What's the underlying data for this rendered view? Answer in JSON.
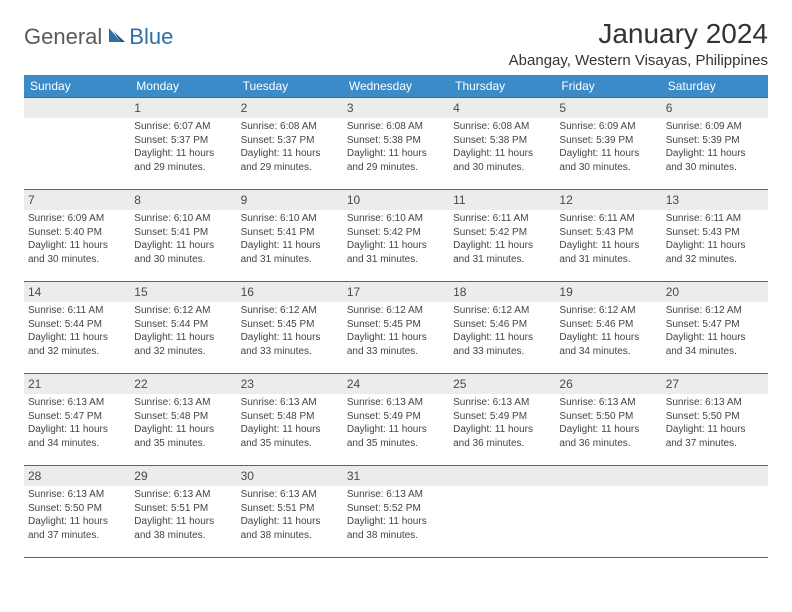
{
  "logo": {
    "general": "General",
    "blue": "Blue"
  },
  "header": {
    "title": "January 2024",
    "location": "Abangay, Western Visayas, Philippines"
  },
  "colors": {
    "header_bg": "#3b8bc9",
    "header_border": "#2f6fa8",
    "daynum_bg": "#ececec",
    "text": "#333333"
  },
  "dayNames": [
    "Sunday",
    "Monday",
    "Tuesday",
    "Wednesday",
    "Thursday",
    "Friday",
    "Saturday"
  ],
  "weeks": [
    [
      null,
      {
        "n": "1",
        "sr": "Sunrise: 6:07 AM",
        "ss": "Sunset: 5:37 PM",
        "dl1": "Daylight: 11 hours",
        "dl2": "and 29 minutes."
      },
      {
        "n": "2",
        "sr": "Sunrise: 6:08 AM",
        "ss": "Sunset: 5:37 PM",
        "dl1": "Daylight: 11 hours",
        "dl2": "and 29 minutes."
      },
      {
        "n": "3",
        "sr": "Sunrise: 6:08 AM",
        "ss": "Sunset: 5:38 PM",
        "dl1": "Daylight: 11 hours",
        "dl2": "and 29 minutes."
      },
      {
        "n": "4",
        "sr": "Sunrise: 6:08 AM",
        "ss": "Sunset: 5:38 PM",
        "dl1": "Daylight: 11 hours",
        "dl2": "and 30 minutes."
      },
      {
        "n": "5",
        "sr": "Sunrise: 6:09 AM",
        "ss": "Sunset: 5:39 PM",
        "dl1": "Daylight: 11 hours",
        "dl2": "and 30 minutes."
      },
      {
        "n": "6",
        "sr": "Sunrise: 6:09 AM",
        "ss": "Sunset: 5:39 PM",
        "dl1": "Daylight: 11 hours",
        "dl2": "and 30 minutes."
      }
    ],
    [
      {
        "n": "7",
        "sr": "Sunrise: 6:09 AM",
        "ss": "Sunset: 5:40 PM",
        "dl1": "Daylight: 11 hours",
        "dl2": "and 30 minutes."
      },
      {
        "n": "8",
        "sr": "Sunrise: 6:10 AM",
        "ss": "Sunset: 5:41 PM",
        "dl1": "Daylight: 11 hours",
        "dl2": "and 30 minutes."
      },
      {
        "n": "9",
        "sr": "Sunrise: 6:10 AM",
        "ss": "Sunset: 5:41 PM",
        "dl1": "Daylight: 11 hours",
        "dl2": "and 31 minutes."
      },
      {
        "n": "10",
        "sr": "Sunrise: 6:10 AM",
        "ss": "Sunset: 5:42 PM",
        "dl1": "Daylight: 11 hours",
        "dl2": "and 31 minutes."
      },
      {
        "n": "11",
        "sr": "Sunrise: 6:11 AM",
        "ss": "Sunset: 5:42 PM",
        "dl1": "Daylight: 11 hours",
        "dl2": "and 31 minutes."
      },
      {
        "n": "12",
        "sr": "Sunrise: 6:11 AM",
        "ss": "Sunset: 5:43 PM",
        "dl1": "Daylight: 11 hours",
        "dl2": "and 31 minutes."
      },
      {
        "n": "13",
        "sr": "Sunrise: 6:11 AM",
        "ss": "Sunset: 5:43 PM",
        "dl1": "Daylight: 11 hours",
        "dl2": "and 32 minutes."
      }
    ],
    [
      {
        "n": "14",
        "sr": "Sunrise: 6:11 AM",
        "ss": "Sunset: 5:44 PM",
        "dl1": "Daylight: 11 hours",
        "dl2": "and 32 minutes."
      },
      {
        "n": "15",
        "sr": "Sunrise: 6:12 AM",
        "ss": "Sunset: 5:44 PM",
        "dl1": "Daylight: 11 hours",
        "dl2": "and 32 minutes."
      },
      {
        "n": "16",
        "sr": "Sunrise: 6:12 AM",
        "ss": "Sunset: 5:45 PM",
        "dl1": "Daylight: 11 hours",
        "dl2": "and 33 minutes."
      },
      {
        "n": "17",
        "sr": "Sunrise: 6:12 AM",
        "ss": "Sunset: 5:45 PM",
        "dl1": "Daylight: 11 hours",
        "dl2": "and 33 minutes."
      },
      {
        "n": "18",
        "sr": "Sunrise: 6:12 AM",
        "ss": "Sunset: 5:46 PM",
        "dl1": "Daylight: 11 hours",
        "dl2": "and 33 minutes."
      },
      {
        "n": "19",
        "sr": "Sunrise: 6:12 AM",
        "ss": "Sunset: 5:46 PM",
        "dl1": "Daylight: 11 hours",
        "dl2": "and 34 minutes."
      },
      {
        "n": "20",
        "sr": "Sunrise: 6:12 AM",
        "ss": "Sunset: 5:47 PM",
        "dl1": "Daylight: 11 hours",
        "dl2": "and 34 minutes."
      }
    ],
    [
      {
        "n": "21",
        "sr": "Sunrise: 6:13 AM",
        "ss": "Sunset: 5:47 PM",
        "dl1": "Daylight: 11 hours",
        "dl2": "and 34 minutes."
      },
      {
        "n": "22",
        "sr": "Sunrise: 6:13 AM",
        "ss": "Sunset: 5:48 PM",
        "dl1": "Daylight: 11 hours",
        "dl2": "and 35 minutes."
      },
      {
        "n": "23",
        "sr": "Sunrise: 6:13 AM",
        "ss": "Sunset: 5:48 PM",
        "dl1": "Daylight: 11 hours",
        "dl2": "and 35 minutes."
      },
      {
        "n": "24",
        "sr": "Sunrise: 6:13 AM",
        "ss": "Sunset: 5:49 PM",
        "dl1": "Daylight: 11 hours",
        "dl2": "and 35 minutes."
      },
      {
        "n": "25",
        "sr": "Sunrise: 6:13 AM",
        "ss": "Sunset: 5:49 PM",
        "dl1": "Daylight: 11 hours",
        "dl2": "and 36 minutes."
      },
      {
        "n": "26",
        "sr": "Sunrise: 6:13 AM",
        "ss": "Sunset: 5:50 PM",
        "dl1": "Daylight: 11 hours",
        "dl2": "and 36 minutes."
      },
      {
        "n": "27",
        "sr": "Sunrise: 6:13 AM",
        "ss": "Sunset: 5:50 PM",
        "dl1": "Daylight: 11 hours",
        "dl2": "and 37 minutes."
      }
    ],
    [
      {
        "n": "28",
        "sr": "Sunrise: 6:13 AM",
        "ss": "Sunset: 5:50 PM",
        "dl1": "Daylight: 11 hours",
        "dl2": "and 37 minutes."
      },
      {
        "n": "29",
        "sr": "Sunrise: 6:13 AM",
        "ss": "Sunset: 5:51 PM",
        "dl1": "Daylight: 11 hours",
        "dl2": "and 38 minutes."
      },
      {
        "n": "30",
        "sr": "Sunrise: 6:13 AM",
        "ss": "Sunset: 5:51 PM",
        "dl1": "Daylight: 11 hours",
        "dl2": "and 38 minutes."
      },
      {
        "n": "31",
        "sr": "Sunrise: 6:13 AM",
        "ss": "Sunset: 5:52 PM",
        "dl1": "Daylight: 11 hours",
        "dl2": "and 38 minutes."
      },
      null,
      null,
      null
    ]
  ]
}
